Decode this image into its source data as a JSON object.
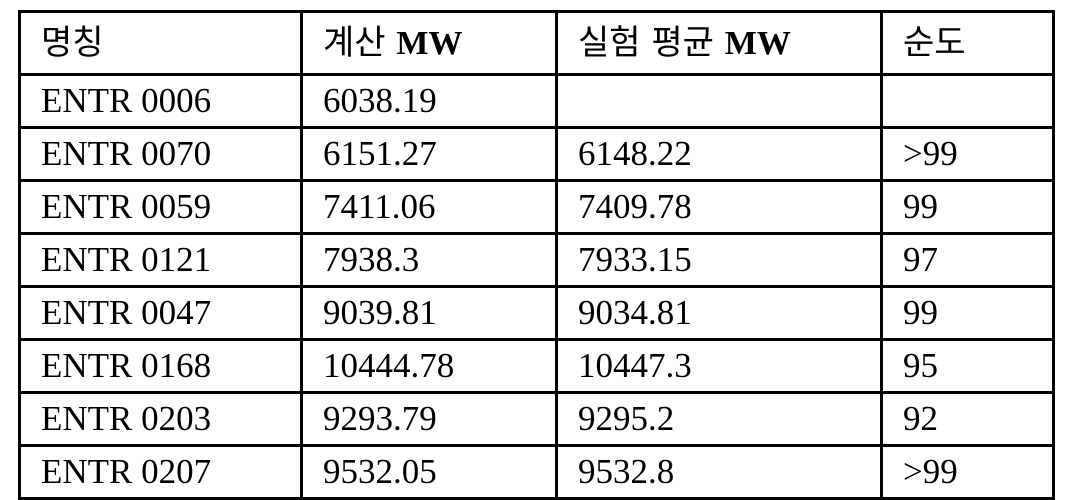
{
  "table": {
    "headers": [
      "명칭",
      "계산 MW",
      "실험 평균 MW",
      "순도"
    ],
    "rows": [
      [
        "ENTR 0006",
        "6038.19",
        "",
        ""
      ],
      [
        "ENTR 0070",
        "6151.27",
        "6148.22",
        ">99"
      ],
      [
        "ENTR 0059",
        "7411.06",
        "7409.78",
        "99"
      ],
      [
        "ENTR 0121",
        "7938.3",
        "7933.15",
        "97"
      ],
      [
        "ENTR 0047",
        "9039.81",
        "9034.81",
        "99"
      ],
      [
        "ENTR 0168",
        "10444.78",
        "10447.3",
        "95"
      ],
      [
        "ENTR 0203",
        "9293.79",
        "9295.2",
        "92"
      ],
      [
        "ENTR 0207",
        "9532.05",
        "9532.8",
        ">99"
      ]
    ]
  }
}
